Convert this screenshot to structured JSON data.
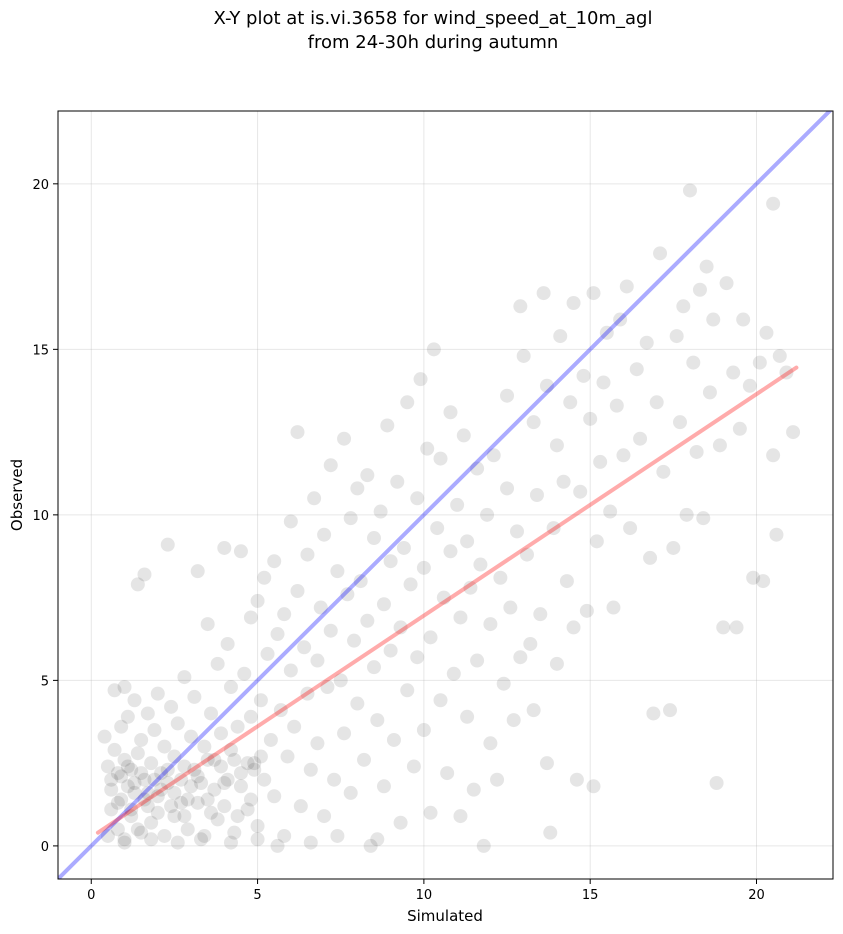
{
  "chart_data": {
    "type": "scatter",
    "title_line1": "X-Y plot at is.vi.3658 for wind_speed_at_10m_agl",
    "title_line2": "from 24-30h during autumn",
    "xlabel": "Simulated",
    "ylabel": "Observed",
    "xlim": [
      -1,
      22.3
    ],
    "ylim": [
      -1,
      22.2
    ],
    "x_ticks": [
      0,
      5,
      10,
      15,
      20
    ],
    "y_ticks": [
      0,
      5,
      10,
      15,
      20
    ],
    "grid": true,
    "marker_color": "#000000",
    "identity_line": {
      "x": [
        -1,
        22.3
      ],
      "y": [
        -1,
        22.3
      ],
      "color": "#0000ff"
    },
    "fit_line": {
      "x": [
        0.2,
        21.2
      ],
      "y": [
        0.4,
        14.45
      ],
      "color": "#ff0000"
    },
    "points": [
      [
        0.4,
        3.3
      ],
      [
        0.5,
        2.4
      ],
      [
        0.6,
        2.0
      ],
      [
        0.6,
        1.1
      ],
      [
        0.7,
        4.7
      ],
      [
        0.7,
        2.9
      ],
      [
        0.8,
        0.5
      ],
      [
        0.8,
        2.2
      ],
      [
        0.9,
        3.6
      ],
      [
        0.9,
        1.4
      ],
      [
        1.0,
        4.8
      ],
      [
        1.0,
        2.6
      ],
      [
        1.0,
        0.2
      ],
      [
        1.1,
        1.8
      ],
      [
        1.1,
        3.9
      ],
      [
        1.2,
        2.3
      ],
      [
        1.2,
        0.9
      ],
      [
        1.3,
        4.4
      ],
      [
        1.3,
        1.6
      ],
      [
        1.4,
        2.8
      ],
      [
        1.4,
        7.9
      ],
      [
        1.5,
        0.4
      ],
      [
        1.5,
        3.2
      ],
      [
        1.6,
        2.0
      ],
      [
        1.6,
        8.2
      ],
      [
        1.7,
        1.2
      ],
      [
        1.7,
        4.0
      ],
      [
        1.8,
        2.5
      ],
      [
        1.8,
        0.7
      ],
      [
        1.9,
        3.5
      ],
      [
        2.0,
        1.5
      ],
      [
        2.0,
        4.6
      ],
      [
        2.1,
        2.2
      ],
      [
        2.2,
        0.3
      ],
      [
        2.2,
        3.0
      ],
      [
        2.3,
        9.1
      ],
      [
        2.3,
        1.9
      ],
      [
        2.4,
        4.2
      ],
      [
        2.5,
        2.7
      ],
      [
        2.5,
        0.9
      ],
      [
        2.6,
        3.7
      ],
      [
        2.7,
        1.3
      ],
      [
        2.8,
        5.1
      ],
      [
        2.8,
        2.4
      ],
      [
        2.9,
        0.5
      ],
      [
        3.0,
        3.3
      ],
      [
        3.0,
        1.8
      ],
      [
        3.1,
        4.5
      ],
      [
        3.2,
        8.3
      ],
      [
        3.2,
        2.1
      ],
      [
        3.3,
        0.2
      ],
      [
        3.4,
        3.0
      ],
      [
        3.5,
        6.7
      ],
      [
        3.5,
        1.4
      ],
      [
        3.6,
        4.0
      ],
      [
        3.7,
        2.6
      ],
      [
        3.8,
        5.5
      ],
      [
        3.8,
        0.8
      ],
      [
        3.9,
        3.4
      ],
      [
        4.0,
        1.9
      ],
      [
        4.0,
        9.0
      ],
      [
        4.1,
        6.1
      ],
      [
        4.2,
        2.9
      ],
      [
        4.2,
        4.8
      ],
      [
        4.3,
        0.4
      ],
      [
        4.4,
        3.6
      ],
      [
        4.5,
        8.9
      ],
      [
        4.5,
        2.2
      ],
      [
        4.6,
        5.2
      ],
      [
        4.7,
        1.1
      ],
      [
        4.8,
        6.9
      ],
      [
        4.8,
        3.9
      ],
      [
        4.9,
        2.5
      ],
      [
        5.0,
        7.4
      ],
      [
        5.0,
        0.6
      ],
      [
        5.1,
        4.4
      ],
      [
        5.2,
        8.1
      ],
      [
        5.2,
        2.0
      ],
      [
        5.3,
        5.8
      ],
      [
        5.4,
        3.2
      ],
      [
        5.5,
        8.6
      ],
      [
        5.5,
        1.5
      ],
      [
        5.6,
        6.4
      ],
      [
        5.7,
        4.1
      ],
      [
        5.8,
        0.3
      ],
      [
        5.8,
        7.0
      ],
      [
        5.9,
        2.7
      ],
      [
        6.0,
        9.8
      ],
      [
        6.0,
        5.3
      ],
      [
        6.1,
        3.6
      ],
      [
        6.2,
        12.5
      ],
      [
        6.2,
        7.7
      ],
      [
        6.3,
        1.2
      ],
      [
        6.4,
        6.0
      ],
      [
        6.5,
        4.6
      ],
      [
        6.5,
        8.8
      ],
      [
        6.6,
        2.3
      ],
      [
        6.7,
        10.5
      ],
      [
        6.8,
        5.6
      ],
      [
        6.8,
        3.1
      ],
      [
        6.9,
        7.2
      ],
      [
        7.0,
        0.9
      ],
      [
        7.0,
        9.4
      ],
      [
        7.1,
        4.8
      ],
      [
        7.2,
        11.5
      ],
      [
        7.2,
        6.5
      ],
      [
        7.3,
        2.0
      ],
      [
        7.4,
        8.3
      ],
      [
        7.5,
        5.0
      ],
      [
        7.6,
        12.3
      ],
      [
        7.6,
        3.4
      ],
      [
        7.7,
        7.6
      ],
      [
        7.8,
        9.9
      ],
      [
        7.8,
        1.6
      ],
      [
        7.9,
        6.2
      ],
      [
        8.0,
        10.8
      ],
      [
        8.0,
        4.3
      ],
      [
        8.1,
        8.0
      ],
      [
        8.2,
        2.6
      ],
      [
        8.3,
        11.2
      ],
      [
        8.3,
        6.8
      ],
      [
        8.4,
        0.0
      ],
      [
        8.5,
        9.3
      ],
      [
        8.5,
        5.4
      ],
      [
        8.6,
        3.8
      ],
      [
        8.7,
        10.1
      ],
      [
        8.8,
        7.3
      ],
      [
        8.8,
        1.8
      ],
      [
        8.9,
        12.7
      ],
      [
        9.0,
        5.9
      ],
      [
        9.0,
        8.6
      ],
      [
        9.1,
        3.2
      ],
      [
        9.2,
        11.0
      ],
      [
        9.3,
        6.6
      ],
      [
        9.3,
        0.7
      ],
      [
        9.4,
        9.0
      ],
      [
        9.5,
        4.7
      ],
      [
        9.5,
        13.4
      ],
      [
        9.6,
        7.9
      ],
      [
        9.7,
        2.4
      ],
      [
        9.8,
        10.5
      ],
      [
        9.8,
        5.7
      ],
      [
        9.9,
        14.1
      ],
      [
        10.0,
        8.4
      ],
      [
        10.0,
        3.5
      ],
      [
        10.1,
        12.0
      ],
      [
        10.2,
        6.3
      ],
      [
        10.2,
        1.0
      ],
      [
        10.3,
        15.0
      ],
      [
        10.4,
        9.6
      ],
      [
        10.5,
        4.4
      ],
      [
        10.5,
        11.7
      ],
      [
        10.6,
        7.5
      ],
      [
        10.7,
        2.2
      ],
      [
        10.8,
        13.1
      ],
      [
        10.8,
        8.9
      ],
      [
        10.9,
        5.2
      ],
      [
        11.0,
        10.3
      ],
      [
        11.1,
        0.9
      ],
      [
        11.1,
        6.9
      ],
      [
        11.2,
        12.4
      ],
      [
        11.3,
        3.9
      ],
      [
        11.3,
        9.2
      ],
      [
        11.4,
        7.8
      ],
      [
        11.5,
        1.7
      ],
      [
        11.6,
        11.4
      ],
      [
        11.6,
        5.6
      ],
      [
        11.7,
        8.5
      ],
      [
        11.8,
        0.0
      ],
      [
        11.9,
        10.0
      ],
      [
        12.0,
        3.1
      ],
      [
        12.0,
        6.7
      ],
      [
        12.1,
        11.8
      ],
      [
        12.2,
        2.0
      ],
      [
        12.3,
        8.1
      ],
      [
        12.4,
        4.9
      ],
      [
        12.5,
        13.6
      ],
      [
        12.5,
        10.8
      ],
      [
        12.6,
        7.2
      ],
      [
        12.7,
        3.8
      ],
      [
        12.8,
        9.5
      ],
      [
        12.9,
        16.3
      ],
      [
        12.9,
        5.7
      ],
      [
        13.0,
        14.8
      ],
      [
        13.1,
        8.8
      ],
      [
        13.2,
        6.1
      ],
      [
        13.3,
        12.8
      ],
      [
        13.3,
        4.1
      ],
      [
        13.4,
        10.6
      ],
      [
        13.5,
        7.0
      ],
      [
        13.6,
        16.7
      ],
      [
        13.7,
        2.5
      ],
      [
        13.7,
        13.9
      ],
      [
        13.8,
        0.4
      ],
      [
        13.9,
        9.6
      ],
      [
        14.0,
        12.1
      ],
      [
        14.0,
        5.5
      ],
      [
        14.1,
        15.4
      ],
      [
        14.2,
        11.0
      ],
      [
        14.3,
        8.0
      ],
      [
        14.4,
        13.4
      ],
      [
        14.5,
        16.4
      ],
      [
        14.5,
        6.6
      ],
      [
        14.6,
        2.0
      ],
      [
        14.7,
        10.7
      ],
      [
        14.8,
        14.2
      ],
      [
        14.9,
        7.1
      ],
      [
        15.0,
        12.9
      ],
      [
        15.1,
        16.7
      ],
      [
        15.1,
        1.8
      ],
      [
        15.2,
        9.2
      ],
      [
        15.3,
        11.6
      ],
      [
        15.4,
        14.0
      ],
      [
        15.5,
        15.5
      ],
      [
        15.6,
        10.1
      ],
      [
        15.7,
        7.2
      ],
      [
        15.8,
        13.3
      ],
      [
        15.9,
        15.9
      ],
      [
        16.0,
        11.8
      ],
      [
        16.1,
        16.9
      ],
      [
        16.2,
        9.6
      ],
      [
        16.4,
        14.4
      ],
      [
        16.5,
        12.3
      ],
      [
        16.7,
        15.2
      ],
      [
        16.8,
        8.7
      ],
      [
        16.9,
        4.0
      ],
      [
        17.0,
        13.4
      ],
      [
        17.1,
        17.9
      ],
      [
        17.2,
        11.3
      ],
      [
        17.4,
        4.1
      ],
      [
        17.5,
        9.0
      ],
      [
        17.6,
        15.4
      ],
      [
        17.7,
        12.8
      ],
      [
        17.8,
        16.3
      ],
      [
        17.9,
        10.0
      ],
      [
        18.0,
        19.8
      ],
      [
        18.1,
        14.6
      ],
      [
        18.2,
        11.9
      ],
      [
        18.3,
        16.8
      ],
      [
        18.4,
        9.9
      ],
      [
        18.5,
        17.5
      ],
      [
        18.6,
        13.7
      ],
      [
        18.7,
        15.9
      ],
      [
        18.8,
        1.9
      ],
      [
        18.9,
        12.1
      ],
      [
        19.0,
        6.6
      ],
      [
        19.1,
        17.0
      ],
      [
        19.3,
        14.3
      ],
      [
        19.4,
        6.6
      ],
      [
        19.5,
        12.6
      ],
      [
        19.6,
        15.9
      ],
      [
        19.8,
        13.9
      ],
      [
        19.9,
        8.1
      ],
      [
        20.1,
        14.6
      ],
      [
        20.2,
        8.0
      ],
      [
        20.3,
        15.5
      ],
      [
        20.5,
        19.4
      ],
      [
        20.5,
        11.8
      ],
      [
        20.6,
        9.4
      ],
      [
        20.7,
        14.8
      ],
      [
        20.9,
        14.3
      ],
      [
        21.1,
        12.5
      ],
      [
        0.6,
        1.7
      ],
      [
        0.9,
        2.1
      ],
      [
        1.1,
        2.4
      ],
      [
        1.3,
        1.9
      ],
      [
        1.5,
        2.2
      ],
      [
        1.7,
        1.6
      ],
      [
        1.9,
        2.0
      ],
      [
        2.1,
        1.7
      ],
      [
        2.3,
        2.3
      ],
      [
        2.5,
        1.6
      ],
      [
        2.7,
        2.0
      ],
      [
        2.9,
        1.4
      ],
      [
        3.1,
        2.3
      ],
      [
        3.3,
        1.9
      ],
      [
        3.5,
        2.6
      ],
      [
        3.7,
        1.7
      ],
      [
        3.9,
        2.4
      ],
      [
        4.1,
        2.0
      ],
      [
        4.3,
        2.6
      ],
      [
        4.5,
        1.8
      ],
      [
        4.7,
        2.5
      ],
      [
        4.9,
        2.3
      ],
      [
        5.1,
        2.7
      ],
      [
        0.8,
        1.3
      ],
      [
        1.2,
        1.1
      ],
      [
        1.6,
        1.4
      ],
      [
        2.0,
        1.0
      ],
      [
        2.4,
        1.2
      ],
      [
        2.8,
        0.9
      ],
      [
        3.2,
        1.3
      ],
      [
        3.6,
        1.0
      ],
      [
        4.0,
        1.2
      ],
      [
        4.4,
        0.9
      ],
      [
        4.8,
        1.4
      ],
      [
        0.5,
        0.3
      ],
      [
        1.0,
        0.1
      ],
      [
        1.4,
        0.5
      ],
      [
        1.8,
        0.2
      ],
      [
        2.6,
        0.1
      ],
      [
        3.4,
        0.3
      ],
      [
        4.2,
        0.1
      ],
      [
        5.0,
        0.2
      ],
      [
        5.6,
        0.0
      ],
      [
        6.6,
        0.1
      ],
      [
        7.4,
        0.3
      ],
      [
        8.6,
        0.2
      ]
    ]
  }
}
